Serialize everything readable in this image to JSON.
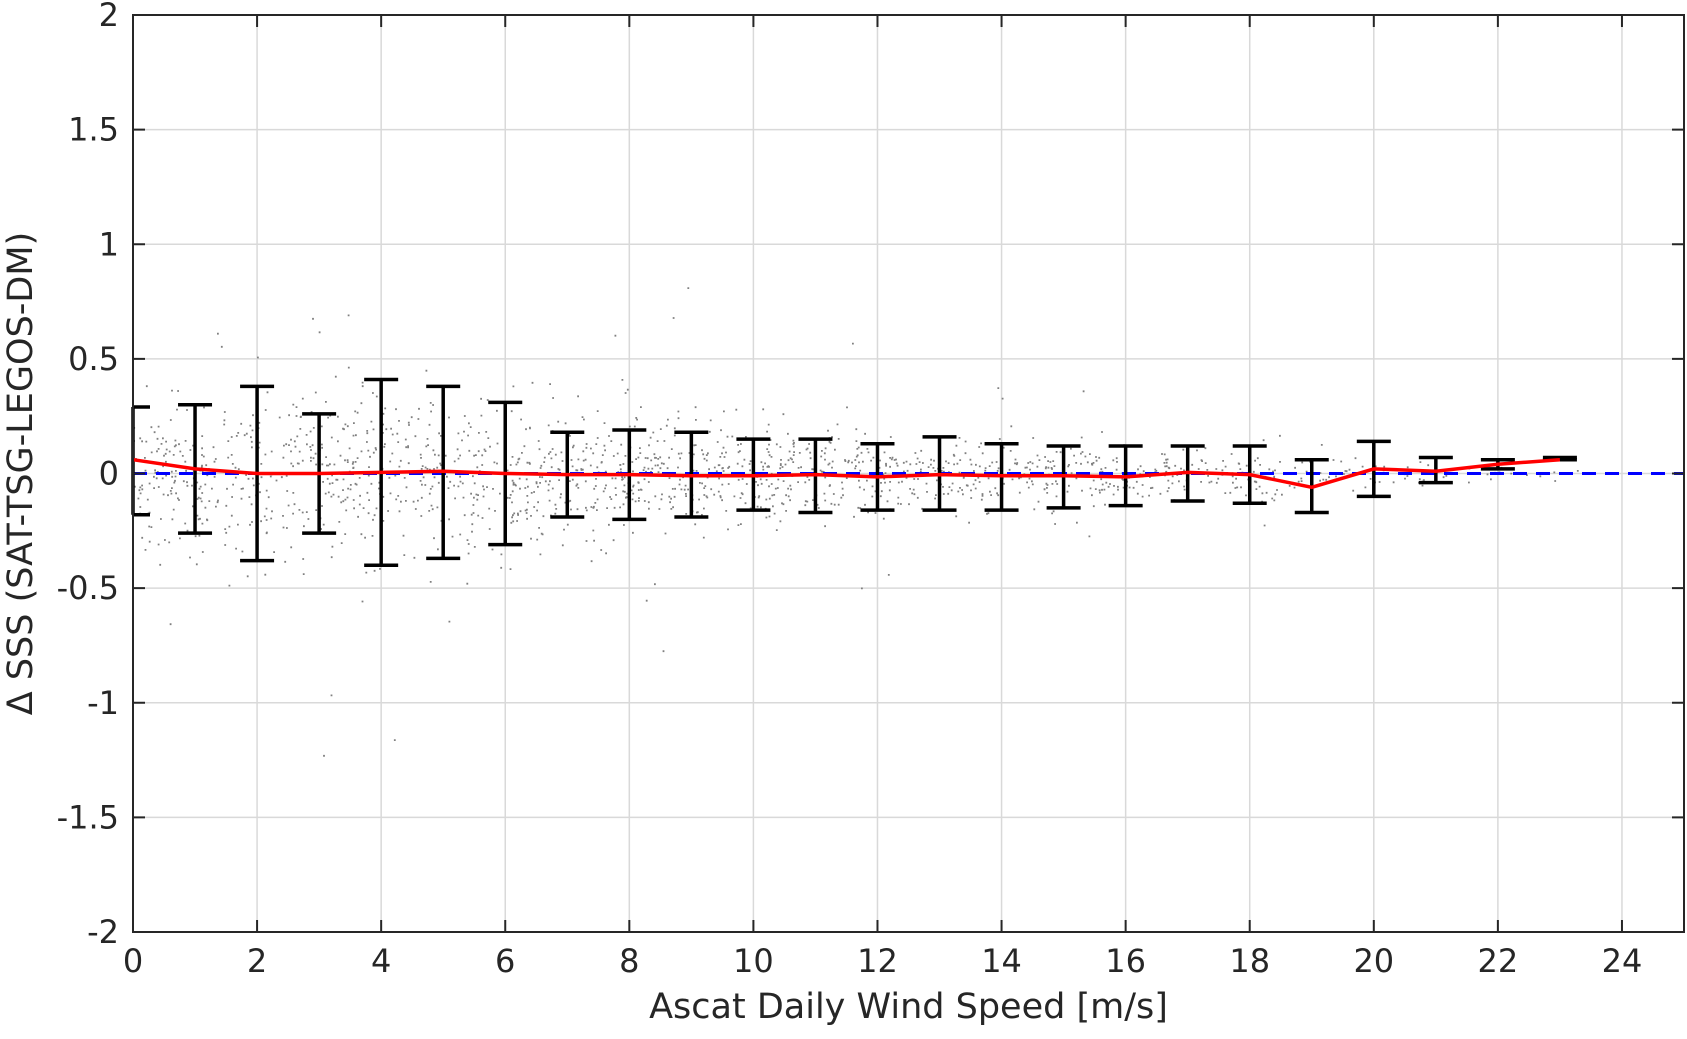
{
  "chart_data": {
    "type": "scatter",
    "title": "",
    "xlabel": "Ascat Daily Wind Speed [m/s]",
    "ylabel": "Δ SSS (SAT-TSG-LEGOS-DM)",
    "xlim": [
      0,
      25
    ],
    "ylim": [
      -2,
      2
    ],
    "x_ticks": [
      0,
      2,
      4,
      6,
      8,
      10,
      12,
      14,
      16,
      18,
      20,
      22,
      24
    ],
    "y_ticks": [
      -2,
      -1.5,
      -1,
      -0.5,
      0,
      0.5,
      1,
      1.5,
      2
    ],
    "y_tick_labels": [
      "-2",
      "-1.5",
      "-1",
      "-0.5",
      "0",
      "0.5",
      "1",
      "1.5",
      "2"
    ],
    "grid": true,
    "legend": "none",
    "reference_line": {
      "y": 0,
      "style": "dashed",
      "color": "#0000ff"
    },
    "scatter_color": "#808080",
    "mean_line_color": "#ff0000",
    "errorbar_color": "#000000",
    "scatter_spread": {
      "x": [
        0,
        1,
        2,
        3,
        4,
        5,
        6,
        7,
        8,
        9,
        10,
        11,
        12,
        13,
        14,
        15,
        16,
        17,
        18,
        19,
        20,
        21,
        22,
        23
      ],
      "std": [
        0.23,
        0.28,
        0.3,
        0.3,
        0.3,
        0.28,
        0.26,
        0.23,
        0.2,
        0.18,
        0.16,
        0.15,
        0.14,
        0.13,
        0.12,
        0.1,
        0.09,
        0.08,
        0.08,
        0.07,
        0.06,
        0.04,
        0.03,
        0.02
      ]
    },
    "series": [
      {
        "type": "line",
        "x": [
          0,
          1,
          2,
          3,
          4,
          5,
          6,
          7,
          8,
          9,
          10,
          11,
          12,
          13,
          14,
          15,
          16,
          17,
          18,
          19,
          20,
          21,
          22,
          23
        ],
        "y": [
          0.06,
          0.02,
          0.0,
          0.0,
          0.005,
          0.01,
          0.0,
          -0.005,
          -0.005,
          -0.01,
          -0.01,
          -0.005,
          -0.015,
          -0.005,
          -0.01,
          -0.01,
          -0.015,
          0.005,
          -0.005,
          -0.06,
          0.02,
          0.01,
          0.04,
          0.06
        ]
      },
      {
        "type": "errorbar",
        "x": [
          0,
          1,
          2,
          3,
          4,
          5,
          6,
          7,
          8,
          9,
          10,
          11,
          12,
          13,
          14,
          15,
          16,
          17,
          18,
          19,
          20,
          21,
          22,
          23
        ],
        "upper": [
          0.29,
          0.3,
          0.38,
          0.26,
          0.41,
          0.38,
          0.31,
          0.18,
          0.19,
          0.18,
          0.15,
          0.15,
          0.13,
          0.16,
          0.13,
          0.12,
          0.12,
          0.12,
          0.12,
          0.06,
          0.14,
          0.07,
          0.06,
          0.07
        ],
        "lower": [
          -0.18,
          -0.26,
          -0.38,
          -0.26,
          -0.4,
          -0.37,
          -0.31,
          -0.19,
          -0.2,
          -0.19,
          -0.16,
          -0.17,
          -0.16,
          -0.16,
          -0.16,
          -0.15,
          -0.14,
          -0.12,
          -0.13,
          -0.17,
          -0.1,
          -0.04,
          0.02,
          0.06
        ]
      }
    ]
  }
}
